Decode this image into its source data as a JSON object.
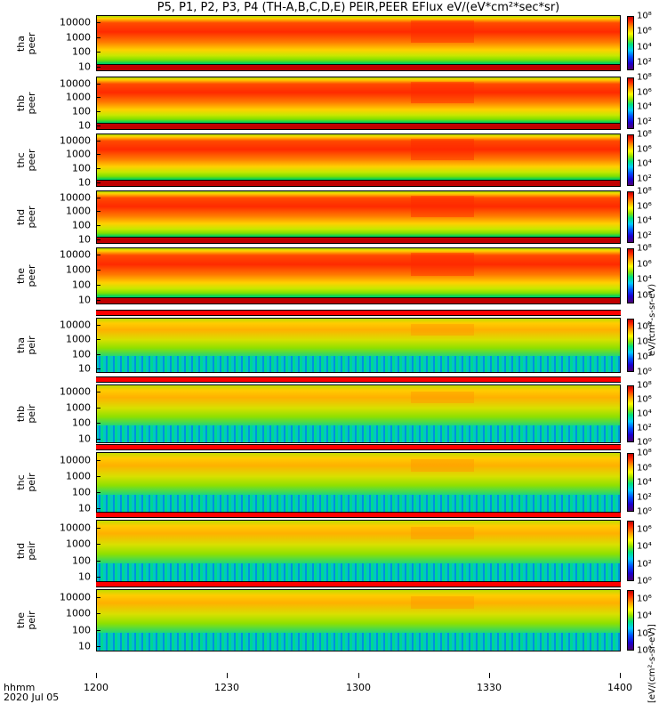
{
  "title": "P5, P1, P2, P3, P4 (TH-A,B,C,D,E) PEIR,PEER EFlux eV/(eV*cm²*sec*sr)",
  "x_axis": {
    "ticks": [
      "1200",
      "1230",
      "1300",
      "1330",
      "1400"
    ],
    "label_line1": "hhmm",
    "label_line2": "2020 Jul 05"
  },
  "colorbar_unit_peer": "eV/(cm²-s-sr-eV)",
  "colorbar_unit_peir": "[eV/(cm²-s-sr-eV)]",
  "colors": {
    "low": "#4b0072",
    "mid": "#00e07a",
    "high": "#c00000",
    "sheet": "#e8e83a"
  },
  "chart_data": {
    "type": "heatmap",
    "x_range": [
      "12:00",
      "14:00"
    ],
    "y_scale": "log",
    "y_unit": "eV",
    "color_scale": "log",
    "panels": [
      {
        "name": "tha peer",
        "label": "tha\npeer",
        "y_ticks": [
          "10000",
          "1000",
          "100",
          "10"
        ],
        "y_range": [
          5,
          30000
        ],
        "cbar_ticks": [
          "10⁸",
          "10⁶",
          "10⁴",
          "10²"
        ],
        "cbar_range": [
          10,
          100000000
        ]
      },
      {
        "name": "thb peer",
        "label": "thb\npeer",
        "y_ticks": [
          "10000",
          "1000",
          "100",
          "10"
        ],
        "y_range": [
          5,
          30000
        ],
        "cbar_ticks": [
          "10⁸",
          "10⁶",
          "10⁴",
          "10²"
        ],
        "cbar_range": [
          10,
          100000000
        ]
      },
      {
        "name": "thc peer",
        "label": "thc\npeer",
        "y_ticks": [
          "10000",
          "1000",
          "100",
          "10"
        ],
        "y_range": [
          5,
          30000
        ],
        "cbar_ticks": [
          "10⁸",
          "10⁶",
          "10⁴",
          "10²"
        ],
        "cbar_range": [
          10,
          100000000
        ]
      },
      {
        "name": "thd peer",
        "label": "thd\npeer",
        "y_ticks": [
          "10000",
          "1000",
          "100",
          "10"
        ],
        "y_range": [
          5,
          30000
        ],
        "cbar_ticks": [
          "10⁸",
          "10⁶",
          "10⁴",
          "10²"
        ],
        "cbar_range": [
          10,
          100000000
        ]
      },
      {
        "name": "the peer",
        "label": "the\npeer",
        "y_ticks": [
          "10000",
          "1000",
          "100",
          "10"
        ],
        "y_range": [
          5,
          30000
        ],
        "cbar_ticks": [
          "10⁸",
          "10⁶",
          "10⁴",
          "10²"
        ],
        "cbar_range": [
          10,
          100000000
        ]
      },
      {
        "name": "tha peir",
        "label": "tha\npeir",
        "y_ticks": [
          "10000",
          "1000",
          "100",
          "10"
        ],
        "y_range": [
          5,
          30000
        ],
        "cbar_ticks": [
          "10⁶",
          "10⁴",
          "10²",
          "10⁰"
        ],
        "cbar_range": [
          1,
          10000000
        ]
      },
      {
        "name": "thb peir",
        "label": "thb\npeir",
        "y_ticks": [
          "10000",
          "1000",
          "100",
          "10"
        ],
        "y_range": [
          5,
          30000
        ],
        "cbar_ticks": [
          "10⁸",
          "10⁶",
          "10⁴",
          "10²",
          "10⁰"
        ],
        "cbar_range": [
          1,
          100000000
        ]
      },
      {
        "name": "thc peir",
        "label": "thc\npeir",
        "y_ticks": [
          "10000",
          "1000",
          "100",
          "10"
        ],
        "y_range": [
          5,
          30000
        ],
        "cbar_ticks": [
          "10⁸",
          "10⁶",
          "10⁴",
          "10²",
          "10⁰"
        ],
        "cbar_range": [
          1,
          100000000
        ]
      },
      {
        "name": "thd peir",
        "label": "thd\npeir",
        "y_ticks": [
          "10000",
          "1000",
          "100",
          "10"
        ],
        "y_range": [
          5,
          30000
        ],
        "cbar_ticks": [
          "10⁶",
          "10⁴",
          "10²",
          "10⁰"
        ],
        "cbar_range": [
          1,
          10000000
        ]
      },
      {
        "name": "the peir",
        "label": "the\npeir",
        "y_ticks": [
          "10000",
          "1000",
          "100",
          "10"
        ],
        "y_range": [
          5,
          30000
        ],
        "cbar_ticks": [
          "10⁶",
          "10⁴",
          "10²",
          "10⁰"
        ],
        "cbar_range": [
          1,
          10000000
        ]
      }
    ]
  }
}
